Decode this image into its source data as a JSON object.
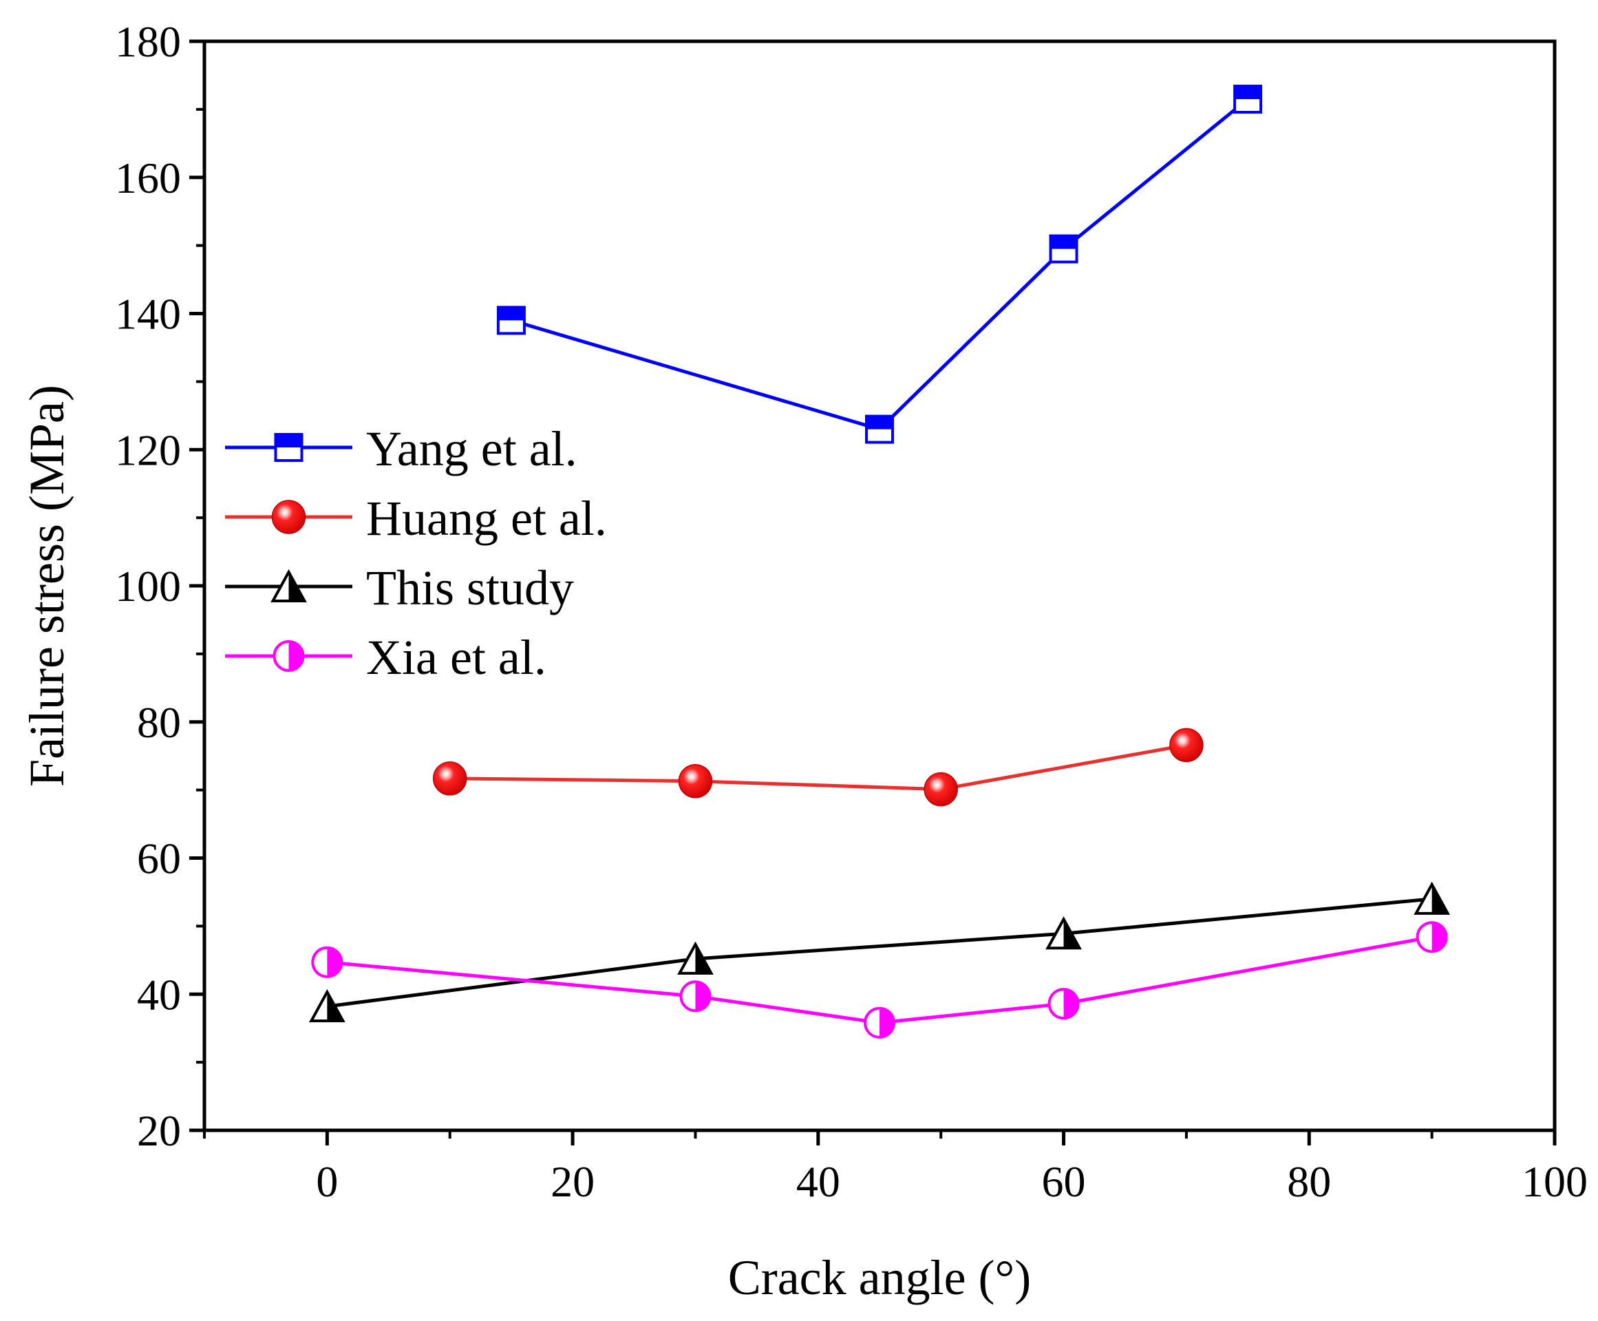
{
  "chart_data": {
    "type": "line",
    "title": "",
    "xlabel": "Crack angle (°)",
    "ylabel": "Failure stress (MPa)",
    "xlim": [
      -10,
      100
    ],
    "ylim": [
      20,
      180
    ],
    "xticks": [
      0,
      20,
      40,
      60,
      80,
      100
    ],
    "yticks": [
      20,
      40,
      60,
      80,
      100,
      120,
      140,
      160,
      180
    ],
    "grid": false,
    "legend_position": "center-left",
    "series": [
      {
        "name": "Yang et al.",
        "color": "#0000ff",
        "marker": "square-half",
        "x": [
          15,
          45,
          60,
          75
        ],
        "values": [
          139,
          123,
          149.5,
          171.5
        ]
      },
      {
        "name": "Huang et al.",
        "color": "#e8312f",
        "marker": "sphere",
        "x": [
          10,
          30,
          50,
          70
        ],
        "values": [
          71.7,
          71.3,
          70.1,
          76.6
        ]
      },
      {
        "name": "This study",
        "color": "#000000",
        "marker": "triangle-half",
        "x": [
          0,
          30,
          60,
          90
        ],
        "values": [
          38.2,
          45.2,
          48.9,
          54
        ]
      },
      {
        "name": "Xia et al.",
        "color": "#ff00ff",
        "marker": "circle-half",
        "x": [
          0,
          30,
          45,
          60,
          90
        ],
        "values": [
          44.7,
          39.7,
          35.8,
          38.6,
          48.4
        ]
      }
    ]
  }
}
